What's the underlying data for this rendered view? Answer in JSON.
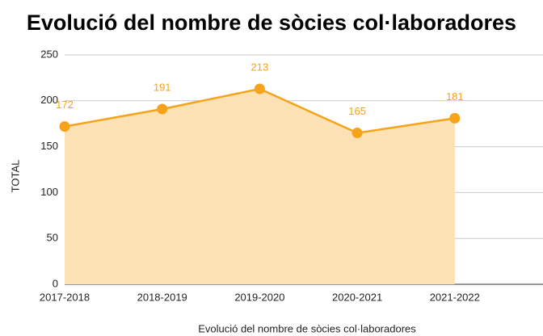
{
  "chart_data": {
    "type": "area",
    "title": "Evolució del nombre de sòcies col·laboradores",
    "x_label": "Evolució del nombre de sòcies col·laboradores",
    "y_label": "TOTAL",
    "categories": [
      "2017-2018",
      "2018-2019",
      "2019-2020",
      "2020-2021",
      "2021-2022"
    ],
    "values": [
      172,
      191,
      213,
      165,
      181
    ],
    "color": "#f5a31a",
    "fill_color": "#fbe1b4",
    "ylim": [
      0,
      250
    ],
    "yticks": [
      0,
      50,
      100,
      150,
      200,
      250
    ],
    "grid": true
  }
}
